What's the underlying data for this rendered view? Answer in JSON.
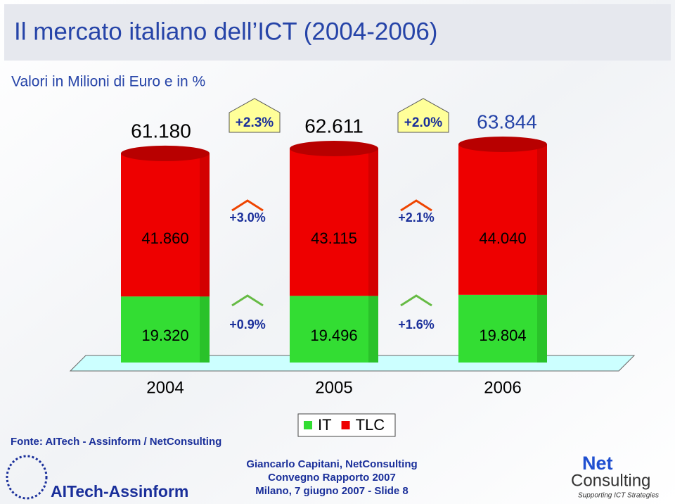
{
  "title": "Il mercato italiano dell’ICT (2004-2006)",
  "subtitle": "Valori in Milioni di Euro e in %",
  "chart_data": {
    "type": "bar",
    "stacked": true,
    "categories": [
      "2004",
      "2005",
      "2006"
    ],
    "series": [
      {
        "name": "IT",
        "color": "#33dd33",
        "values": [
          19320,
          19496,
          19804
        ],
        "value_labels": [
          "19.320",
          "19.496",
          "19.804"
        ]
      },
      {
        "name": "TLC",
        "color": "#ee0000",
        "values": [
          41860,
          43115,
          44040
        ],
        "value_labels": [
          "41.860",
          "43.115",
          "44.040"
        ]
      }
    ],
    "totals": {
      "values": [
        61180,
        62611,
        63844
      ],
      "value_labels": [
        "61.180",
        "62.611",
        "63.844"
      ]
    },
    "growth_total": [
      {
        "value": 2.3,
        "label": "+2.3%"
      },
      {
        "value": 2.0,
        "label": "+2.0%"
      }
    ],
    "growth_tlc": [
      {
        "value": 3.0,
        "label": "+3.0%"
      },
      {
        "value": 2.1,
        "label": "+2.1%"
      }
    ],
    "growth_it": [
      {
        "value": 0.9,
        "label": "+0.9%"
      },
      {
        "value": 1.6,
        "label": "+1.6%"
      }
    ]
  },
  "source": "Fonte: AITech - Assinform / NetConsulting",
  "footer": [
    "Giancarlo Capitani, NetConsulting",
    "Convegno Rapporto 2007",
    "Milano, 7 giugno 2007 - Slide 8"
  ],
  "logo_left": "AITech-Assinform",
  "logo_right": {
    "name1": "Net",
    "name2": "Consulting",
    "tagline": "Supporting ICT Strategies"
  }
}
